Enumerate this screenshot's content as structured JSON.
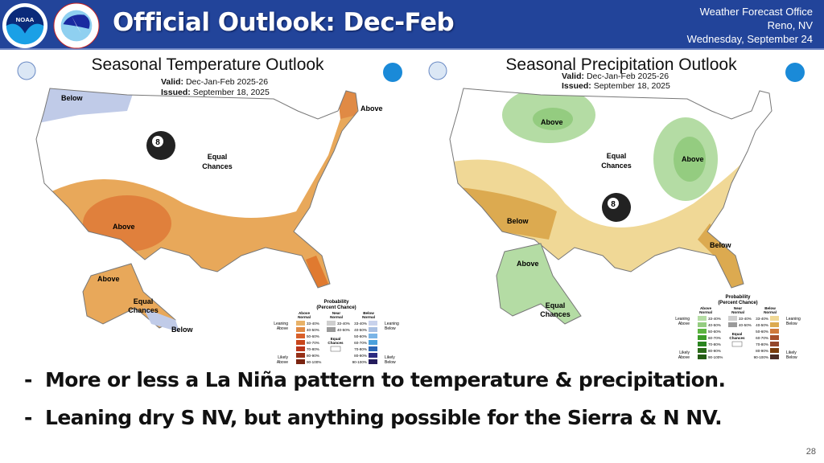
{
  "header": {
    "title": "Official Outlook: Dec-Feb",
    "office": "Weather Forecast Office",
    "location": "Reno, NV",
    "date": "Wednesday, September 24",
    "logos": [
      "NOAA",
      "National Weather Service"
    ],
    "color": "#22449a"
  },
  "temperature": {
    "title": "Seasonal Temperature Outlook",
    "valid_label": "Valid:",
    "valid": "Dec-Jan-Feb 2025-26",
    "issued_label": "Issued:",
    "issued": "September 18, 2025",
    "labels": {
      "below_nw": "Below",
      "above_ne": "Above",
      "above_sw": "Above",
      "equal": "Equal",
      "chances": "Chances",
      "above_ak": "Above",
      "equal_ak": "Equal",
      "chances_ak": "Chances",
      "below_ak": "Below"
    },
    "legend": {
      "title1": "Probability",
      "title2": "(Percent Chance)",
      "col_above": [
        "Above",
        "Normal"
      ],
      "col_near": [
        "Near",
        "Normal"
      ],
      "col_below": [
        "Below",
        "Normal"
      ],
      "leaning_above": [
        "Leaning",
        "Above"
      ],
      "likely_above": [
        "Likely",
        "Above"
      ],
      "leaning_below": [
        "Leaning",
        "Below"
      ],
      "likely_below": [
        "Likely",
        "Below"
      ],
      "equal": [
        "Equal",
        "Chances"
      ],
      "ranges": [
        "33-40%",
        "40-50%",
        "50-60%",
        "60-70%",
        "70-80%",
        "80-90%",
        "90-100%"
      ],
      "near_ranges": [
        "33-40%",
        "40-50%"
      ],
      "above_colors": [
        "#e8b268",
        "#e08a45",
        "#d85f2a",
        "#c8461c",
        "#b8341a",
        "#963018",
        "#7a2410"
      ],
      "near_colors": [
        "#cfcfcf",
        "#9a9a9a"
      ],
      "below_colors": [
        "#c8d2ec",
        "#a8bfe2",
        "#7ab4e6",
        "#4aa0dc",
        "#2a64b4",
        "#2c2a80",
        "#241c5c"
      ]
    }
  },
  "precipitation": {
    "title": "Seasonal Precipitation Outlook",
    "valid_label": "Valid:",
    "valid": "Dec-Jan-Feb 2025-26",
    "issued_label": "Issued:",
    "issued": "September 18, 2025",
    "labels": {
      "above_n": "Above",
      "above_ov": "Above",
      "equal": "Equal",
      "chances": "Chances",
      "below_sw": "Below",
      "below_se": "Below",
      "above_ak": "Above",
      "equal_ak": "Equal",
      "chances_ak": "Chances"
    },
    "legend": {
      "title1": "Probability",
      "title2": "(Percent Chance)",
      "col_above": [
        "Above",
        "Normal"
      ],
      "col_near": [
        "Near",
        "Normal"
      ],
      "col_below": [
        "Below",
        "Normal"
      ],
      "leaning_above": [
        "Leaning",
        "Above"
      ],
      "likely_above": [
        "Likely",
        "Above"
      ],
      "leaning_below": [
        "Leaning",
        "Below"
      ],
      "likely_below": [
        "Likely",
        "Below"
      ],
      "equal": [
        "Equal",
        "Chances"
      ],
      "ranges": [
        "33-40%",
        "40-50%",
        "50-60%",
        "60-70%",
        "70-80%",
        "80-90%",
        "90-100%"
      ],
      "near_ranges": [
        "33-40%",
        "40-50%"
      ],
      "above_colors": [
        "#b4dca4",
        "#94cc80",
        "#5cb440",
        "#3c9c28",
        "#2a8420",
        "#2a6a18",
        "#245c14"
      ],
      "near_colors": [
        "#cfcfcf",
        "#9a9a9a"
      ],
      "below_colors": [
        "#f0d896",
        "#dcaa50",
        "#d07a3c",
        "#a8502c",
        "#94482c",
        "#7a3c0c",
        "#4c2c24"
      ]
    }
  },
  "bullets": [
    "More or less a La Niña pattern to temperature & precipitation.",
    "Leaning dry S NV, but anything possible for the Sierra & N NV."
  ],
  "page_number": "28"
}
